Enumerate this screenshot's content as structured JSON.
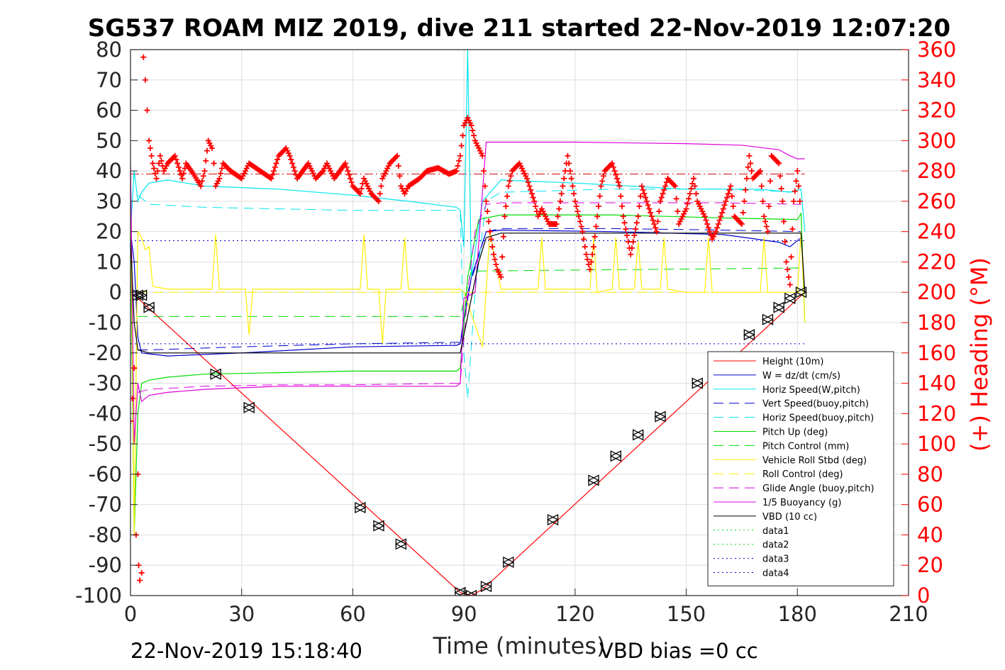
{
  "chart_data": {
    "type": "line",
    "title": "SG537 ROAM MIZ 2019, dive 211 started 22-Nov-2019 12:07:20",
    "xlabel": "Time (minutes)",
    "ylabel": "",
    "y2label": "(+) Heading (°M)",
    "xlim": [
      0,
      210
    ],
    "ylim": [
      -100,
      80
    ],
    "y2lim": [
      0,
      360
    ],
    "xticks": [
      "0",
      "30",
      "60",
      "90",
      "120",
      "150",
      "180",
      "210"
    ],
    "yticks": [
      "80",
      "70",
      "60",
      "50",
      "40",
      "30",
      "20",
      "10",
      "0",
      "-10",
      "-20",
      "-30",
      "-40",
      "-50",
      "-60",
      "-70",
      "-80",
      "-90",
      "-100"
    ],
    "y2ticks": [
      "360",
      "340",
      "320",
      "300",
      "280",
      "260",
      "240",
      "220",
      "200",
      "180",
      "160",
      "140",
      "120",
      "100",
      "80",
      "60",
      "40",
      "20",
      "0"
    ],
    "grid": true,
    "legend_position": "bottom-right",
    "footer_left": "22-Nov-2019 15:18:40",
    "footer_right": "VBD bias =0 cc",
    "series": [
      {
        "name": "Height (10m)",
        "color": "#ff0000",
        "style": "solid",
        "x": [
          0,
          2,
          89,
          92,
          95,
          103,
          182
        ],
        "values": [
          0,
          -2,
          -99,
          -100,
          -98,
          -89,
          0
        ]
      },
      {
        "name": "W = dz/dt (cm/s)",
        "color": "#0000cc",
        "style": "solid",
        "x": [
          0,
          1,
          2,
          3,
          10,
          30,
          60,
          88,
          89,
          92,
          96,
          100,
          130,
          160,
          175,
          178,
          181,
          182
        ],
        "values": [
          20,
          10,
          -15,
          -20,
          -21,
          -20,
          -18,
          -17.5,
          -17,
          5,
          20,
          20.5,
          20,
          19,
          16.5,
          15,
          18,
          0
        ]
      },
      {
        "name": "Horiz Speed(W,pitch)",
        "color": "#00e5ee",
        "style": "solid",
        "x": [
          0,
          1,
          2,
          3,
          5,
          10,
          20,
          40,
          60,
          75,
          88,
          89,
          90,
          91,
          92,
          95,
          100,
          120,
          150,
          170,
          178,
          181,
          182
        ],
        "values": [
          20,
          40,
          30,
          33,
          36,
          37,
          35,
          34,
          32,
          30,
          28,
          27,
          15,
          80,
          5,
          30,
          37,
          36,
          34,
          34,
          33,
          34,
          20
        ]
      },
      {
        "name": "Vert Speed(buoy,pitch)",
        "color": "#0000cc",
        "style": "dashed",
        "x": [
          2,
          5,
          30,
          60,
          89,
          91,
          96,
          100,
          130,
          160,
          181
        ],
        "values": [
          -19,
          -19,
          -18,
          -17,
          -16.5,
          0,
          20,
          21,
          21,
          20.5,
          20
        ]
      },
      {
        "name": "Horiz Speed(buoy,pitch)",
        "color": "#00e5ee",
        "style": "dashed",
        "x": [
          2,
          5,
          20,
          40,
          60,
          75,
          89,
          90,
          91,
          93,
          96,
          100,
          130,
          160,
          181
        ],
        "values": [
          32,
          29,
          28,
          27.5,
          27,
          27,
          27,
          -20,
          -35,
          0,
          30,
          33,
          34,
          34,
          33
        ]
      },
      {
        "name": "Pitch Up (deg)",
        "color": "#00dd00",
        "style": "solid",
        "x": [
          0,
          1,
          2,
          3,
          5,
          10,
          20,
          40,
          60,
          88,
          89,
          91,
          94,
          100,
          130,
          160,
          180,
          181,
          182
        ],
        "values": [
          20,
          -80,
          -40,
          -30,
          -29,
          -28,
          -27,
          -26.5,
          -26,
          -26,
          -25,
          5,
          24,
          25.5,
          25.5,
          24.5,
          24,
          26,
          -10
        ]
      },
      {
        "name": "Pitch Control (mm)",
        "color": "#00dd00",
        "style": "dashed",
        "x": [
          2,
          89,
          92,
          181
        ],
        "values": [
          -8,
          -8,
          7,
          8
        ]
      },
      {
        "name": "Vehicle Roll Stbd (deg)",
        "color": "#ffee00",
        "style": "solid",
        "x": [
          0,
          1,
          2,
          3,
          4,
          5,
          6,
          10,
          22,
          23,
          24,
          31,
          32,
          33,
          40,
          62,
          63,
          64,
          67,
          68,
          69,
          73,
          74,
          75,
          88,
          89,
          90,
          95,
          96,
          97,
          100,
          102,
          110,
          111,
          112,
          120,
          124,
          125,
          126,
          130,
          131,
          132,
          136,
          137,
          138,
          143,
          144,
          145,
          150,
          155,
          156,
          157,
          165,
          170,
          171,
          172,
          180,
          181,
          182
        ],
        "values": [
          40,
          -80,
          20,
          18,
          14,
          15,
          2,
          1,
          1,
          19,
          1,
          1,
          -14,
          1,
          1,
          1,
          19,
          1,
          1,
          -17,
          1,
          1,
          18,
          1,
          1,
          1,
          0,
          -18,
          1,
          20,
          1,
          1,
          1,
          18,
          1,
          1,
          1,
          18,
          0,
          1,
          18,
          1,
          1,
          17,
          1,
          1,
          18,
          1,
          0,
          0,
          18,
          0,
          0,
          0,
          18,
          0,
          0,
          20,
          -10
        ]
      },
      {
        "name": "Roll Control (deg)",
        "color": "#ffee00",
        "style": "dashed",
        "x": [
          2,
          89,
          92,
          181
        ],
        "values": [
          0,
          0,
          0,
          0
        ]
      },
      {
        "name": "Glide Angle (buoy,pitch)",
        "color": "#dd00dd",
        "style": "dashed",
        "x": [
          2,
          5,
          20,
          40,
          60,
          89,
          91,
          93,
          96,
          100,
          130,
          160,
          181
        ],
        "values": [
          -33,
          -32,
          -31,
          -30.5,
          -30.5,
          -30,
          0,
          20,
          29,
          29.5,
          29.5,
          29.5,
          29
        ]
      },
      {
        "name": "1/5 Buoyancy (g)",
        "color": "#dd00dd",
        "style": "solid",
        "x": [
          0,
          1,
          2,
          3,
          5,
          10,
          20,
          40,
          60,
          88,
          89,
          90,
          93,
          96,
          120,
          150,
          165,
          175,
          178,
          180,
          182
        ],
        "values": [
          43,
          -50,
          -30,
          -36,
          -34,
          -33,
          -32,
          -31,
          -31,
          -31,
          -30,
          -2,
          0,
          49.5,
          49.5,
          49,
          48.5,
          47,
          45,
          44,
          44
        ]
      },
      {
        "name": "VBD (10 cc)",
        "color": "#000000",
        "style": "solid",
        "x": [
          0,
          1,
          2,
          5,
          30,
          60,
          89,
          91,
          94,
          96,
          100,
          130,
          160,
          181,
          182
        ],
        "values": [
          18,
          -10,
          -19,
          -20,
          -20,
          -20,
          -20,
          -8,
          10,
          18,
          19.5,
          19.5,
          19.5,
          19.5,
          0
        ]
      },
      {
        "name": "data1",
        "color": "#00dd00",
        "style": "dotted",
        "x": [],
        "values": []
      },
      {
        "name": "data2",
        "color": "#00dd00",
        "style": "dotted",
        "x": [],
        "values": []
      },
      {
        "name": "data3",
        "color": "#0000cc",
        "style": "dotted",
        "x": [
          0,
          182
        ],
        "values": [
          17,
          17
        ]
      },
      {
        "name": "data4",
        "color": "#0000cc",
        "style": "dotted",
        "x": [
          0,
          182
        ],
        "values": [
          -17,
          -17
        ]
      }
    ],
    "reference_lines": [
      {
        "color": "#cc0000",
        "style": "dashdot",
        "axis": "right",
        "x": [
          0,
          182
        ],
        "value": 278
      }
    ],
    "heading_series": {
      "axis": "right",
      "color": "#ff0000",
      "marker": "+",
      "x": [
        0,
        0.5,
        1,
        1.5,
        2,
        2.2,
        2.5,
        3,
        3.5,
        4,
        4.5,
        5,
        6,
        7,
        8,
        9,
        10,
        12,
        14,
        15,
        17,
        19,
        20,
        21,
        22,
        22.5,
        23,
        24,
        25,
        27,
        30,
        32,
        35,
        38,
        40,
        42,
        43,
        45,
        48,
        50,
        52,
        53,
        55,
        58,
        60,
        62,
        63,
        65,
        67,
        68,
        70,
        72,
        73,
        74,
        75,
        78,
        80,
        83,
        86,
        88,
        89,
        90,
        91,
        92,
        93,
        95,
        96,
        97,
        98,
        99,
        100,
        101,
        102,
        103,
        105,
        107,
        109,
        110,
        111,
        113,
        115,
        118,
        120,
        122,
        123,
        124,
        125,
        126,
        127,
        128,
        130,
        132,
        133,
        135,
        137,
        138,
        140,
        142,
        143,
        145,
        147,
        148,
        150,
        152,
        153,
        155,
        157,
        158,
        160,
        162,
        163,
        165,
        167,
        168,
        170,
        171,
        172,
        173,
        175,
        176,
        177,
        178,
        179,
        180,
        181
      ],
      "values": [
        115,
        130,
        150,
        40,
        80,
        20,
        10,
        15,
        355,
        340,
        320,
        300,
        285,
        275,
        290,
        280,
        285,
        290,
        275,
        285,
        278,
        270,
        280,
        300,
        295,
        285,
        270,
        275,
        285,
        280,
        275,
        285,
        280,
        275,
        290,
        295,
        290,
        275,
        285,
        275,
        280,
        285,
        275,
        285,
        270,
        265,
        275,
        265,
        260,
        275,
        285,
        290,
        270,
        265,
        270,
        275,
        280,
        282,
        278,
        280,
        290,
        310,
        315,
        310,
        300,
        290,
        260,
        240,
        225,
        215,
        210,
        250,
        270,
        280,
        285,
        275,
        260,
        250,
        255,
        245,
        245,
        290,
        260,
        240,
        225,
        215,
        230,
        250,
        270,
        280,
        285,
        270,
        250,
        225,
        250,
        270,
        255,
        240,
        260,
        275,
        270,
        245,
        255,
        275,
        260,
        250,
        235,
        240,
        255,
        270,
        250,
        245,
        290,
        275,
        280,
        250,
        240,
        290,
        285,
        260,
        220,
        205,
        260,
        280,
        250
      ]
    },
    "triangle_markers": {
      "axis": "left",
      "color": "#000000",
      "x": [
        2,
        3,
        5,
        23,
        32,
        62,
        67,
        73,
        89,
        92,
        96,
        102,
        114,
        125,
        131,
        137,
        143,
        153,
        167,
        172,
        175,
        178,
        181
      ],
      "values": [
        -1,
        -1,
        -5,
        -27,
        -38,
        -71,
        -77,
        -83,
        -99,
        -100,
        -97,
        -89,
        -75,
        -62,
        -54,
        -47,
        -41,
        -30,
        -14,
        -9,
        -5,
        -2,
        0
      ]
    }
  }
}
